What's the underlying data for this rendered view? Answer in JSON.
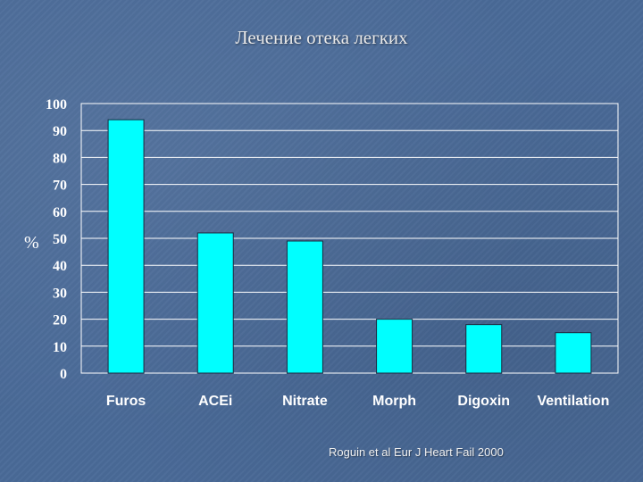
{
  "slide": {
    "title": "Лечение отека легких",
    "citation": "Roguin et al Eur J Heart Fail 2000"
  },
  "colors": {
    "bar": "#00ffff",
    "grid": "#ffffff",
    "background": "#4a6a98"
  },
  "chart_data": {
    "type": "bar",
    "title": "Лечение отека легких",
    "xlabel": "",
    "ylabel": "%",
    "categories": [
      "Furos",
      "ACEi",
      "Nitrate",
      "Morph",
      "Digoxin",
      "Ventilation"
    ],
    "values": [
      94,
      52,
      49,
      20,
      18,
      15
    ],
    "ylim": [
      0,
      100
    ],
    "yticks": [
      0,
      10,
      20,
      30,
      40,
      50,
      60,
      70,
      80,
      90,
      100
    ],
    "grid": true,
    "legend": "none"
  }
}
